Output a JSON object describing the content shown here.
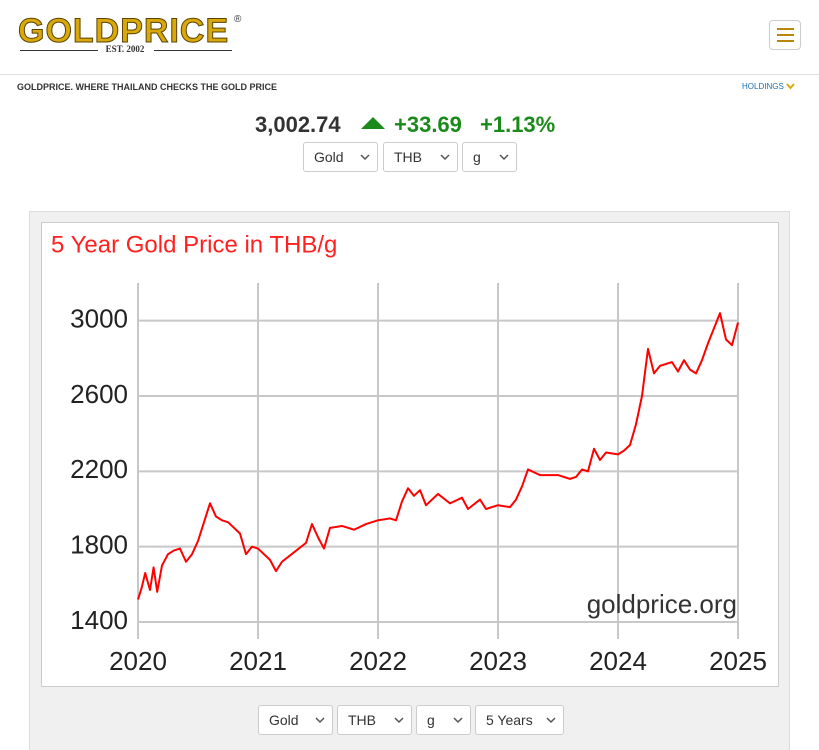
{
  "header": {
    "logo": "GOLDPRICE",
    "logo_mark": "®",
    "established": "EST. 2002",
    "tagline": "GOLDPRICE. WHERE THAILAND CHECKS THE GOLD PRICE",
    "holdings": "HOLDINGS"
  },
  "price": {
    "value": "3,002.74",
    "change": "+33.69",
    "change_percent": "+1.13%"
  },
  "top_selects": [
    "Gold",
    "THB",
    "g"
  ],
  "bottom_selects": [
    "Gold",
    "THB",
    "g",
    "5 Years"
  ],
  "chart_data": {
    "type": "line",
    "title": "5 Year Gold Price in THB/g",
    "watermark": "goldprice.org",
    "color": "#ff0000",
    "grid": true,
    "x": [
      2020.0,
      2020.03,
      2020.06,
      2020.1,
      2020.13,
      2020.16,
      2020.2,
      2020.25,
      2020.3,
      2020.35,
      2020.4,
      2020.45,
      2020.5,
      2020.55,
      2020.6,
      2020.65,
      2020.7,
      2020.75,
      2020.8,
      2020.85,
      2020.9,
      2020.95,
      2021.0,
      2021.1,
      2021.15,
      2021.2,
      2021.3,
      2021.4,
      2021.45,
      2021.5,
      2021.55,
      2021.6,
      2021.7,
      2021.8,
      2021.9,
      2022.0,
      2022.1,
      2022.15,
      2022.2,
      2022.25,
      2022.3,
      2022.35,
      2022.4,
      2022.5,
      2022.6,
      2022.7,
      2022.75,
      2022.85,
      2022.9,
      2023.0,
      2023.1,
      2023.15,
      2023.2,
      2023.25,
      2023.35,
      2023.5,
      2023.6,
      2023.65,
      2023.7,
      2023.75,
      2023.8,
      2023.85,
      2023.9,
      2024.0,
      2024.05,
      2024.1,
      2024.15,
      2024.2,
      2024.25,
      2024.3,
      2024.35,
      2024.45,
      2024.5,
      2024.55,
      2024.6,
      2024.65,
      2024.7,
      2024.75,
      2024.8,
      2024.85,
      2024.9,
      2024.95,
      2025.0
    ],
    "values": [
      1520,
      1580,
      1660,
      1570,
      1690,
      1560,
      1700,
      1760,
      1780,
      1790,
      1720,
      1760,
      1830,
      1930,
      2030,
      1960,
      1940,
      1930,
      1900,
      1870,
      1760,
      1800,
      1790,
      1730,
      1670,
      1720,
      1770,
      1820,
      1920,
      1850,
      1790,
      1900,
      1910,
      1890,
      1920,
      1940,
      1950,
      1940,
      2040,
      2110,
      2070,
      2100,
      2020,
      2080,
      2030,
      2060,
      2000,
      2050,
      2000,
      2020,
      2010,
      2050,
      2120,
      2210,
      2180,
      2180,
      2160,
      2170,
      2210,
      2200,
      2320,
      2260,
      2300,
      2290,
      2310,
      2340,
      2450,
      2600,
      2850,
      2720,
      2760,
      2780,
      2730,
      2790,
      2740,
      2720,
      2790,
      2880,
      2960,
      3040,
      2900,
      2870,
      2990
    ],
    "xlim": [
      2020,
      2025
    ],
    "xticks": [
      2020,
      2021,
      2022,
      2023,
      2024,
      2025
    ],
    "ylim": [
      1400,
      3200
    ],
    "yticks": [
      1400,
      1800,
      2200,
      2600,
      3000
    ]
  }
}
